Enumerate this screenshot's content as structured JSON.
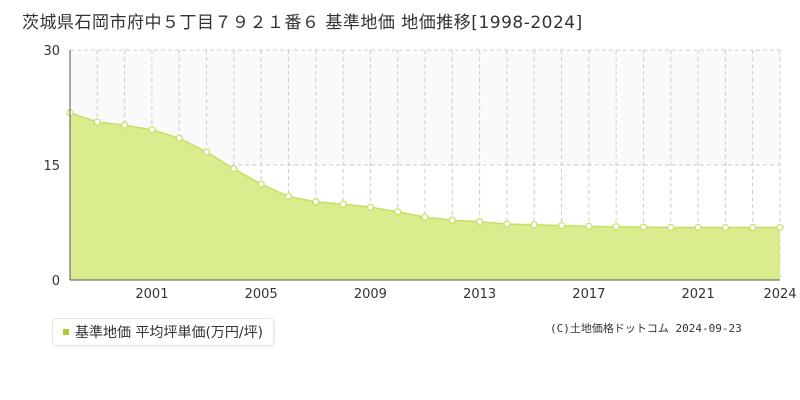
{
  "title": "茨城県石岡市府中５丁目７９２１番６ 基準地価 地価推移[1998-2024]",
  "legend": {
    "label": "基準地価 平均坪単価(万円/坪)"
  },
  "copyright": "(C)土地価格ドットコム 2024-09-23",
  "colors": {
    "fill": "#d9ec8e",
    "line": "#c7df62",
    "marker_fill": "#ffffff",
    "accent": "#a8cc2c",
    "upper_band": "#faf9fb"
  },
  "chart_data": {
    "type": "area",
    "title": "茨城県石岡市府中５丁目７９２１番６ 基準地価 地価推移[1998-2024]",
    "series": [
      {
        "name": "基準地価 平均坪単価(万円/坪)",
        "x": [
          1998,
          1999,
          2000,
          2001,
          2002,
          2003,
          2004,
          2005,
          2006,
          2007,
          2008,
          2009,
          2010,
          2011,
          2012,
          2013,
          2014,
          2015,
          2016,
          2017,
          2018,
          2019,
          2020,
          2021,
          2022,
          2023,
          2024
        ],
        "values": [
          21.8,
          20.6,
          20.2,
          19.6,
          18.5,
          16.7,
          14.5,
          12.5,
          10.9,
          10.2,
          9.9,
          9.5,
          8.9,
          8.2,
          7.8,
          7.6,
          7.3,
          7.2,
          7.1,
          7.0,
          6.95,
          6.9,
          6.85,
          6.85,
          6.85,
          6.85,
          6.85
        ]
      }
    ],
    "xlim": [
      1998,
      2024
    ],
    "ylim": [
      0,
      30
    ],
    "y_ticks": [
      0,
      15,
      30
    ],
    "x_tick_labels": [
      "2001",
      "2005",
      "2009",
      "2013",
      "2017",
      "2021",
      "2024"
    ],
    "x_tick_values": [
      2001,
      2005,
      2009,
      2013,
      2017,
      2021,
      2024
    ],
    "grid": true,
    "legend_position": "bottom-left"
  }
}
